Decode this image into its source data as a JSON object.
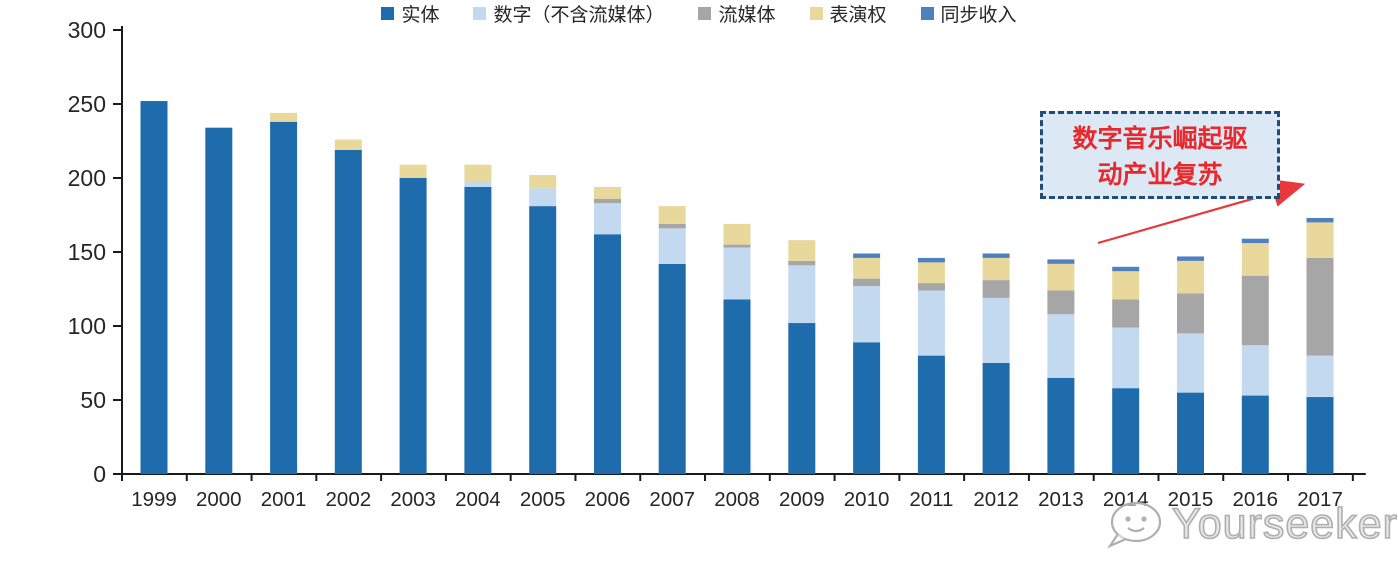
{
  "chart_data": {
    "type": "bar",
    "stacked": true,
    "title": "",
    "categories": [
      "1999",
      "2000",
      "2001",
      "2002",
      "2003",
      "2004",
      "2005",
      "2006",
      "2007",
      "2008",
      "2009",
      "2010",
      "2011",
      "2012",
      "2013",
      "2014",
      "2015",
      "2016",
      "2017"
    ],
    "series": [
      {
        "name": "实体",
        "color": "#1E6CAC",
        "values": [
          252,
          234,
          238,
          219,
          200,
          194,
          181,
          162,
          142,
          118,
          102,
          89,
          80,
          75,
          65,
          58,
          55,
          53,
          52
        ]
      },
      {
        "name": "数字（不含流媒体）",
        "color": "#C3D9EF",
        "values": [
          0,
          0,
          0,
          0,
          0,
          4,
          12,
          21,
          24,
          35,
          39,
          38,
          44,
          44,
          43,
          41,
          40,
          34,
          28
        ]
      },
      {
        "name": "流媒体",
        "color": "#A6A6A6",
        "values": [
          0,
          0,
          0,
          0,
          0,
          0,
          0,
          3,
          3,
          2,
          3,
          5,
          5,
          12,
          16,
          19,
          27,
          47,
          66
        ]
      },
      {
        "name": "表演权",
        "color": "#E9D89B",
        "values": [
          0,
          0,
          6,
          7,
          9,
          11,
          9,
          8,
          12,
          14,
          14,
          14,
          14,
          15,
          18,
          19,
          22,
          22,
          24
        ]
      },
      {
        "name": "同步收入",
        "color": "#4E81BD",
        "values": [
          0,
          0,
          0,
          0,
          0,
          0,
          0,
          0,
          0,
          0,
          0,
          3,
          3,
          3,
          3,
          3,
          3,
          3,
          3
        ]
      }
    ],
    "ylim": [
      0,
      300
    ],
    "yticks": [
      0,
      50,
      100,
      150,
      200,
      250,
      300
    ],
    "grid": false,
    "legend_position": "bottom",
    "axis_color": "#262626"
  },
  "annotation": {
    "text_line1": "数字音乐崛起驱",
    "text_line2": "动产业复苏",
    "arrow_color": "#E8383D"
  },
  "watermark": {
    "brand": "Yourseeker"
  }
}
